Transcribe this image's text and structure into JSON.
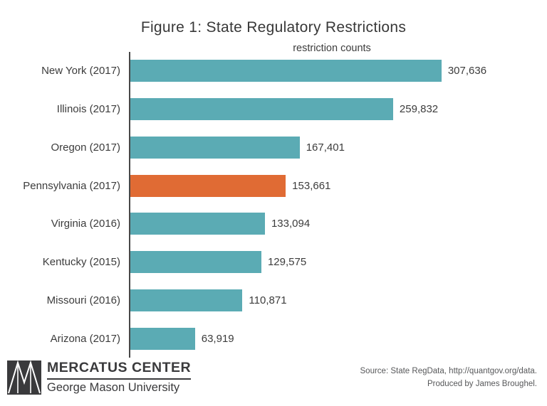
{
  "title": "Figure 1: State Regulatory Restrictions",
  "subtitle": "restriction counts",
  "chart_data": {
    "type": "bar",
    "orientation": "horizontal",
    "title": "Figure 1: State Regulatory Restrictions",
    "subtitle": "restriction counts",
    "categories": [
      "New York (2017)",
      "Illinois (2017)",
      "Oregon (2017)",
      "Pennsylvania (2017)",
      "Virginia (2016)",
      "Kentucky (2015)",
      "Missouri (2016)",
      "Arizona (2017)"
    ],
    "values": [
      307636,
      259832,
      167401,
      153661,
      133094,
      129575,
      110871,
      63919
    ],
    "value_labels": [
      "307,636",
      "259,832",
      "167,401",
      "153,661",
      "133,094",
      "129,575",
      "110,871",
      "63,919"
    ],
    "highlight_index": 3,
    "bar_color": "#5babb4",
    "highlight_color": "#e06b34",
    "axis_color": "#474747",
    "xlim": [
      0,
      412000
    ],
    "grid": false,
    "legend": null
  },
  "footer": {
    "logo_name": "MERCATUS CENTER",
    "logo_university": "George Mason University",
    "source_line1": "Source: State RegData, http://quantgov.org/data.",
    "source_line2": "Produced by James Broughel."
  }
}
